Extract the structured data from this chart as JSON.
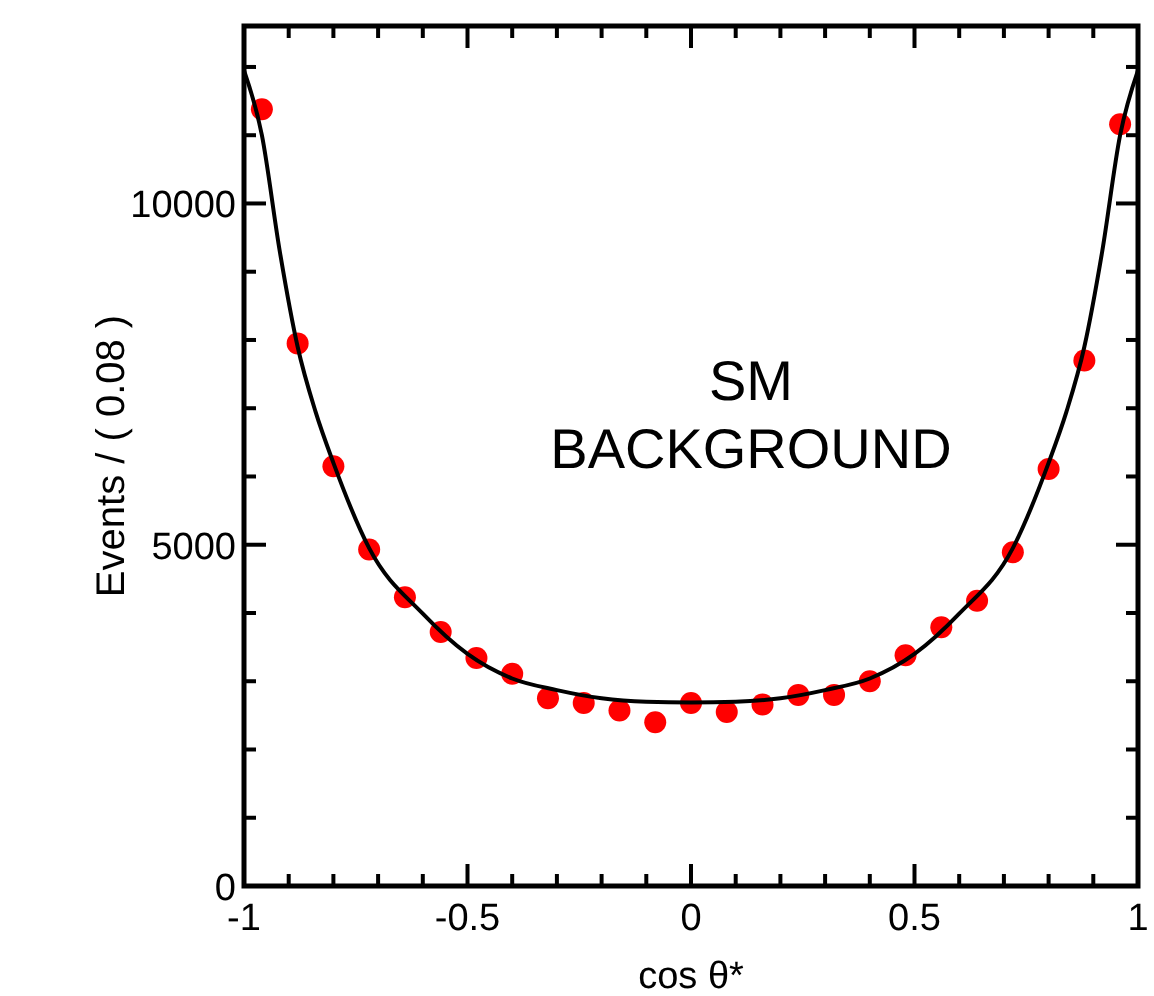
{
  "chart_data": {
    "type": "scatter",
    "xlabel": "cos θ*",
    "ylabel": "Events / ( 0.08 )",
    "annotations": [
      "SM BACKGROUND"
    ],
    "xlim": [
      -1,
      1
    ],
    "ylim": [
      0,
      12600
    ],
    "xticks": [
      -1,
      {
        "value": -0.9,
        "label": null
      },
      {
        "value": -0.8,
        "label": null
      },
      {
        "value": -0.7,
        "label": null
      },
      {
        "value": -0.6,
        "label": null
      },
      -0.5,
      {
        "value": -0.4,
        "label": null
      },
      {
        "value": -0.3,
        "label": null
      },
      {
        "value": -0.2,
        "label": null
      },
      {
        "value": -0.1,
        "label": null
      },
      0,
      {
        "value": 0.1,
        "label": null
      },
      {
        "value": 0.2,
        "label": null
      },
      {
        "value": 0.3,
        "label": null
      },
      {
        "value": 0.4,
        "label": null
      },
      0.5,
      {
        "value": 0.6,
        "label": null
      },
      {
        "value": 0.7,
        "label": null
      },
      {
        "value": 0.8,
        "label": null
      },
      {
        "value": 0.9,
        "label": null
      },
      1
    ],
    "yticks": [
      0,
      {
        "value": 1000,
        "label": null
      },
      {
        "value": 2000,
        "label": null
      },
      {
        "value": 3000,
        "label": null
      },
      {
        "value": 4000,
        "label": null
      },
      5000,
      {
        "value": 6000,
        "label": null
      },
      {
        "value": 7000,
        "label": null
      },
      {
        "value": 8000,
        "label": null
      },
      {
        "value": 9000,
        "label": null
      },
      10000,
      {
        "value": 11000,
        "label": null
      },
      {
        "value": 12000,
        "label": null
      }
    ],
    "grid": false,
    "series": [
      {
        "color": "#ff0000",
        "marker": "circle",
        "x": [
          -0.96,
          -0.88,
          -0.8,
          -0.72,
          -0.64,
          -0.56,
          -0.48,
          -0.4,
          -0.32,
          -0.24,
          -0.16,
          -0.08,
          0,
          0.08,
          0.16,
          0.24,
          0.32,
          0.4,
          0.48,
          0.56,
          0.64,
          0.72,
          0.8,
          0.88,
          0.96
        ],
        "values": [
          11380,
          7950,
          6150,
          4930,
          4230,
          3720,
          3340,
          3110,
          2750,
          2680,
          2570,
          2400,
          2680,
          2550,
          2660,
          2800,
          2800,
          3000,
          3380,
          3790,
          4180,
          4890,
          6110,
          7700,
          11160
        ]
      },
      {
        "type": "line",
        "color": "#000000",
        "line_style": "solid",
        "x": [
          -1,
          -0.96,
          -0.92,
          -0.88,
          -0.84,
          -0.8,
          -0.72,
          -0.6,
          -0.5,
          -0.4,
          -0.3,
          -0.2,
          -0.1,
          0,
          0.1,
          0.2,
          0.3,
          0.4,
          0.5,
          0.6,
          0.72,
          0.8,
          0.84,
          0.88,
          0.92,
          0.96,
          1
        ],
        "values": [
          11950,
          11000,
          9300,
          7900,
          6950,
          6200,
          4950,
          3990,
          3400,
          3040,
          2870,
          2750,
          2700,
          2690,
          2700,
          2750,
          2870,
          3040,
          3400,
          3990,
          4950,
          6200,
          6950,
          7900,
          9300,
          11000,
          11950
        ]
      }
    ]
  }
}
